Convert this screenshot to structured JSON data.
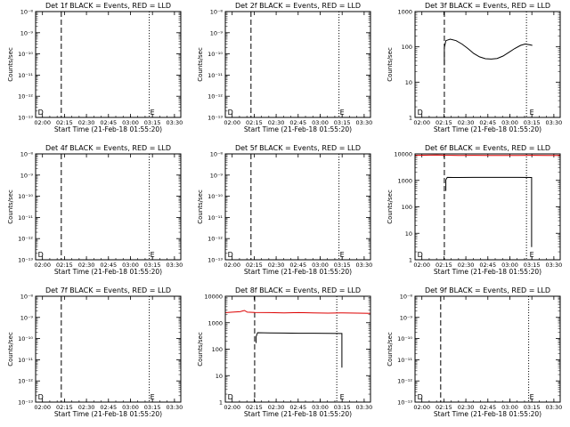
{
  "colors": {
    "events": "#000000",
    "lld": "#dd0000",
    "background": "#ffffff",
    "axes": "#000000"
  },
  "xaxis": {
    "label": "Start Time (21-Feb-18 01:55:20)",
    "ticks": [
      "02:00",
      "02:15",
      "02:30",
      "02:45",
      "03:00",
      "03:15",
      "03:30"
    ],
    "tick_minutes": [
      4.67,
      19.67,
      34.67,
      49.67,
      64.67,
      79.67,
      94.67
    ],
    "range_minutes": [
      0,
      99
    ]
  },
  "ylabel": "Counts/sec",
  "chart_data": [
    {
      "id": "det1",
      "type": "line",
      "title": "Det 1f BLACK = Events, RED = LLD",
      "yscale": "log",
      "yticks": [
        "10⁻⁸",
        "10⁻⁹",
        "10⁻¹⁰",
        "10⁻¹¹",
        "10⁻¹²",
        "10⁻¹³"
      ],
      "ytick_values": [
        1e-08,
        1e-09,
        1e-10,
        1e-11,
        1e-12,
        1e-13
      ],
      "ylim": [
        1e-13,
        1e-08
      ],
      "markers": [
        {
          "label": "D",
          "x": 1.0
        },
        {
          "label": "E",
          "x": 77.5
        }
      ],
      "vlines": [
        {
          "x": 17.5,
          "style": "dashed"
        },
        {
          "x": 77.5,
          "style": "dotted"
        }
      ],
      "series": []
    },
    {
      "id": "det2",
      "type": "line",
      "title": "Det 2f BLACK = Events, RED = LLD",
      "yscale": "log",
      "yticks": [
        "10⁻⁸",
        "10⁻⁹",
        "10⁻¹⁰",
        "10⁻¹¹",
        "10⁻¹²",
        "10⁻¹³"
      ],
      "ytick_values": [
        1e-08,
        1e-09,
        1e-10,
        1e-11,
        1e-12,
        1e-13
      ],
      "ylim": [
        1e-13,
        1e-08
      ],
      "markers": [
        {
          "label": "D",
          "x": 1.0
        },
        {
          "label": "E",
          "x": 77.5
        }
      ],
      "vlines": [
        {
          "x": 17.5,
          "style": "dashed"
        },
        {
          "x": 77.5,
          "style": "dotted"
        }
      ],
      "series": []
    },
    {
      "id": "det3",
      "type": "line",
      "title": "Det 3f BLACK = Events, RED = LLD",
      "yscale": "log",
      "yticks": [
        "1000",
        "100",
        "10",
        "1"
      ],
      "ytick_values": [
        1000,
        100,
        10,
        1
      ],
      "ylim": [
        1,
        1000
      ],
      "markers": [
        {
          "label": "D",
          "x": 1.0
        },
        {
          "label": "E",
          "x": 77.5
        }
      ],
      "vlines": [
        {
          "x": 20.0,
          "style": "dashed"
        },
        {
          "x": 76.0,
          "style": "dotted"
        }
      ],
      "series": [
        {
          "color": "events",
          "points": [
            [
              20.0,
              30
            ],
            [
              20.0,
              95
            ],
            [
              21,
              150
            ],
            [
              24,
              165
            ],
            [
              28,
              150
            ],
            [
              32,
              120
            ],
            [
              36,
              90
            ],
            [
              40,
              65
            ],
            [
              44,
              52
            ],
            [
              48,
              46
            ],
            [
              52,
              45
            ],
            [
              56,
              47
            ],
            [
              60,
              55
            ],
            [
              64,
              70
            ],
            [
              68,
              90
            ],
            [
              72,
              110
            ],
            [
              75,
              120
            ],
            [
              78,
              115
            ],
            [
              80,
              110
            ]
          ]
        }
      ]
    },
    {
      "id": "det4",
      "type": "line",
      "title": "Det 4f BLACK = Events, RED = LLD",
      "yscale": "log",
      "yticks": [
        "10⁻⁸",
        "10⁻⁹",
        "10⁻¹⁰",
        "10⁻¹¹",
        "10⁻¹²",
        "10⁻¹³"
      ],
      "ytick_values": [
        1e-08,
        1e-09,
        1e-10,
        1e-11,
        1e-12,
        1e-13
      ],
      "ylim": [
        1e-13,
        1e-08
      ],
      "markers": [
        {
          "label": "D",
          "x": 1.0
        },
        {
          "label": "E",
          "x": 77.5
        }
      ],
      "vlines": [
        {
          "x": 17.5,
          "style": "dashed"
        },
        {
          "x": 77.5,
          "style": "dotted"
        }
      ],
      "series": []
    },
    {
      "id": "det5",
      "type": "line",
      "title": "Det 5f BLACK = Events, RED = LLD",
      "yscale": "log",
      "yticks": [
        "10⁻⁸",
        "10⁻⁹",
        "10⁻¹⁰",
        "10⁻¹¹",
        "10⁻¹²",
        "10⁻¹³"
      ],
      "ytick_values": [
        1e-08,
        1e-09,
        1e-10,
        1e-11,
        1e-12,
        1e-13
      ],
      "ylim": [
        1e-13,
        1e-08
      ],
      "markers": [
        {
          "label": "D",
          "x": 1.0
        },
        {
          "label": "E",
          "x": 77.5
        }
      ],
      "vlines": [
        {
          "x": 17.5,
          "style": "dashed"
        },
        {
          "x": 77.5,
          "style": "dotted"
        }
      ],
      "series": []
    },
    {
      "id": "det6",
      "type": "line",
      "title": "Det 6f BLACK = Events, RED = LLD",
      "yscale": "log",
      "yticks": [
        "10000",
        "1000",
        "100",
        "10",
        "1"
      ],
      "ytick_values": [
        10000,
        1000,
        100,
        10,
        1
      ],
      "ylim": [
        1,
        10000
      ],
      "markers": [
        {
          "label": "D",
          "x": 1.0
        },
        {
          "label": "E",
          "x": 77.5
        }
      ],
      "vlines": [
        {
          "x": 20.0,
          "style": "dashed"
        },
        {
          "x": 76.0,
          "style": "dotted"
        }
      ],
      "series": [
        {
          "color": "lld",
          "points": [
            [
              0,
              8800
            ],
            [
              5,
              8900
            ],
            [
              10,
              9000
            ],
            [
              15,
              9100
            ],
            [
              20,
              8900
            ],
            [
              30,
              8800
            ],
            [
              40,
              8850
            ],
            [
              50,
              8800
            ],
            [
              60,
              8750
            ],
            [
              70,
              8800
            ],
            [
              80,
              8850
            ],
            [
              90,
              8800
            ],
            [
              99,
              8750
            ]
          ]
        },
        {
          "color": "events",
          "points": [
            [
              21,
              400
            ],
            [
              21,
              1050
            ],
            [
              22,
              1300
            ],
            [
              30,
              1290
            ],
            [
              40,
              1300
            ],
            [
              50,
              1295
            ],
            [
              60,
              1300
            ],
            [
              70,
              1300
            ],
            [
              79.5,
              1290
            ],
            [
              79.5,
              3
            ]
          ]
        }
      ]
    },
    {
      "id": "det7",
      "type": "line",
      "title": "Det 7f BLACK = Events, RED = LLD",
      "yscale": "log",
      "yticks": [
        "10⁻⁸",
        "10⁻⁹",
        "10⁻¹⁰",
        "10⁻¹¹",
        "10⁻¹²",
        "10⁻¹³"
      ],
      "ytick_values": [
        1e-08,
        1e-09,
        1e-10,
        1e-11,
        1e-12,
        1e-13
      ],
      "ylim": [
        1e-13,
        1e-08
      ],
      "markers": [
        {
          "label": "D",
          "x": 1.0
        },
        {
          "label": "E",
          "x": 77.5
        }
      ],
      "vlines": [
        {
          "x": 17.5,
          "style": "dashed"
        },
        {
          "x": 77.5,
          "style": "dotted"
        }
      ],
      "series": []
    },
    {
      "id": "det8",
      "type": "line",
      "title": "Det 8f BLACK = Events, RED = LLD",
      "yscale": "log",
      "yticks": [
        "10000",
        "1000",
        "100",
        "10",
        "1"
      ],
      "ytick_values": [
        10000,
        1000,
        100,
        10,
        1
      ],
      "ylim": [
        1,
        10000
      ],
      "markers": [
        {
          "label": "D",
          "x": 1.0
        },
        {
          "label": "E",
          "x": 77.5
        }
      ],
      "vlines": [
        {
          "x": 20.0,
          "style": "dashed"
        },
        {
          "x": 76.0,
          "style": "dotted"
        }
      ],
      "series": [
        {
          "color": "lld",
          "points": [
            [
              0,
              2400
            ],
            [
              5,
              2500
            ],
            [
              10,
              2600
            ],
            [
              13,
              2900
            ],
            [
              15,
              2500
            ],
            [
              20,
              2450
            ],
            [
              30,
              2400
            ],
            [
              40,
              2350
            ],
            [
              50,
              2400
            ],
            [
              60,
              2350
            ],
            [
              70,
              2300
            ],
            [
              80,
              2350
            ],
            [
              90,
              2300
            ],
            [
              99,
              2250
            ]
          ]
        },
        {
          "color": "events",
          "points": [
            [
              21,
              170
            ],
            [
              21,
              300
            ],
            [
              22,
              420
            ],
            [
              30,
              410
            ],
            [
              40,
              405
            ],
            [
              50,
              400
            ],
            [
              60,
              400
            ],
            [
              70,
              395
            ],
            [
              79.5,
              390
            ],
            [
              79.5,
              20
            ]
          ]
        }
      ]
    },
    {
      "id": "det9",
      "type": "line",
      "title": "Det 9f BLACK = Events, RED = LLD",
      "yscale": "log",
      "yticks": [
        "10⁻⁸",
        "10⁻⁹",
        "10⁻¹⁰",
        "10⁻¹¹",
        "10⁻¹²",
        "10⁻¹³"
      ],
      "ytick_values": [
        1e-08,
        1e-09,
        1e-10,
        1e-11,
        1e-12,
        1e-13
      ],
      "ylim": [
        1e-13,
        1e-08
      ],
      "markers": [
        {
          "label": "D",
          "x": 1.0
        },
        {
          "label": "E",
          "x": 77.5
        }
      ],
      "vlines": [
        {
          "x": 17.5,
          "style": "dashed"
        },
        {
          "x": 77.5,
          "style": "dotted"
        }
      ],
      "series": []
    }
  ]
}
